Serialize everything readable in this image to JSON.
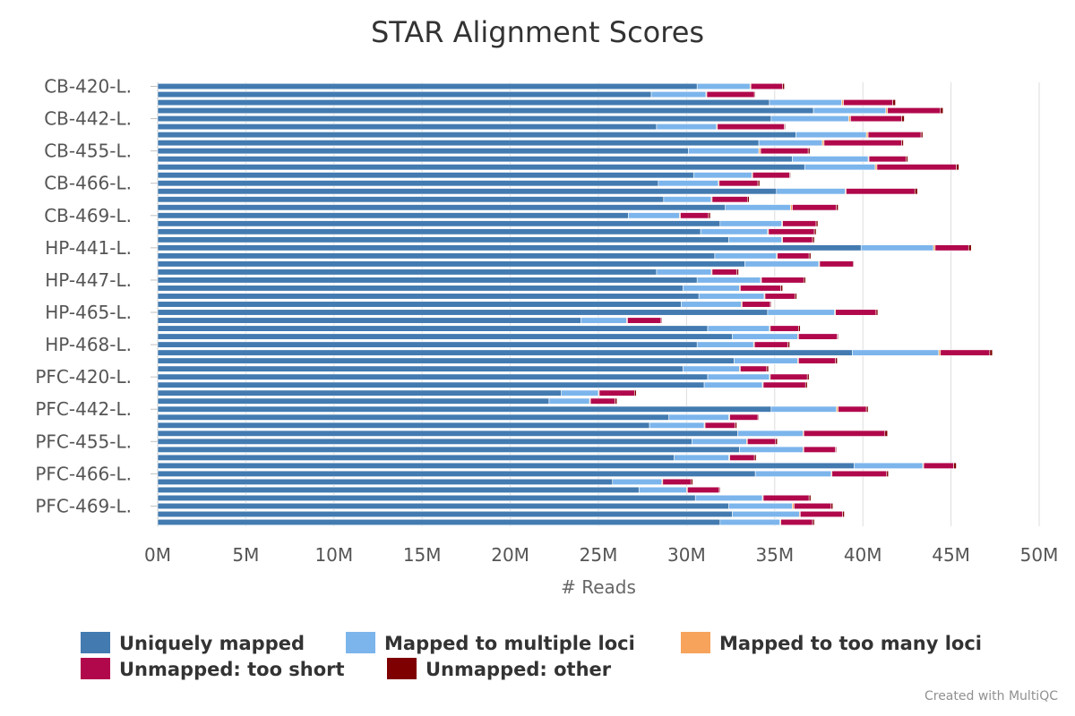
{
  "chart_data": {
    "type": "bar",
    "orientation": "horizontal",
    "stacked": true,
    "title": "STAR Alignment Scores",
    "xlabel": "# Reads",
    "ylabel": "",
    "xlim": [
      0,
      50000000
    ],
    "x_ticks": [
      "0M",
      "5M",
      "10M",
      "15M",
      "20M",
      "25M",
      "30M",
      "35M",
      "40M",
      "45M",
      "50M"
    ],
    "y_tick_labels": [
      "CB-420-L.",
      "CB-442-L.",
      "CB-455-L.",
      "CB-466-L.",
      "CB-469-L.",
      "HP-441-L.",
      "HP-447-L.",
      "HP-465-L.",
      "HP-468-L.",
      "PFC-420-L.",
      "PFC-442-L.",
      "PFC-455-L.",
      "PFC-466-L.",
      "PFC-469-L."
    ],
    "y_tick_positions": [
      0,
      4,
      8,
      12,
      16,
      20,
      24,
      28,
      32,
      36,
      40,
      44,
      48,
      52
    ],
    "grid": "vertical",
    "legend_position": "bottom",
    "colors": [
      "#437bb1",
      "#7cb5ec",
      "#f7a35c",
      "#b1084c",
      "#7f0000"
    ],
    "series": [
      {
        "name": "Uniquely mapped",
        "values": [
          30.6,
          28.0,
          34.7,
          37.2,
          34.8,
          28.3,
          36.2,
          34.1,
          30.1,
          36.0,
          36.7,
          30.4,
          28.4,
          35.1,
          28.7,
          32.2,
          26.7,
          31.9,
          30.8,
          32.4,
          39.9,
          31.6,
          33.3,
          28.3,
          30.6,
          29.8,
          30.7,
          29.7,
          34.6,
          24.0,
          31.2,
          32.6,
          30.6,
          39.4,
          32.7,
          29.8,
          31.2,
          31.0,
          22.9,
          22.2,
          34.8,
          29.0,
          27.9,
          32.9,
          30.3,
          33.0,
          29.3,
          39.5,
          33.9,
          25.8,
          27.3,
          30.5,
          32.4,
          32.6,
          31.9
        ],
        "counts_in": "millions of reads"
      },
      {
        "name": "Mapped to multiple loci",
        "values": [
          3.0,
          3.1,
          4.1,
          4.1,
          4.4,
          3.4,
          4.0,
          3.6,
          4.0,
          4.3,
          4.0,
          3.3,
          3.4,
          3.9,
          2.7,
          3.7,
          2.9,
          3.5,
          3.8,
          3.0,
          4.1,
          3.5,
          4.2,
          3.1,
          3.6,
          3.2,
          3.7,
          3.4,
          3.8,
          2.6,
          3.5,
          3.7,
          3.2,
          4.9,
          3.6,
          3.2,
          3.5,
          3.3,
          2.1,
          2.3,
          3.7,
          3.4,
          3.1,
          3.7,
          3.1,
          3.6,
          3.1,
          3.9,
          4.3,
          2.8,
          2.7,
          3.8,
          3.6,
          3.8,
          3.4
        ],
        "counts_in": "millions of reads"
      },
      {
        "name": "Mapped to too many loci",
        "values": [
          0.05,
          0.05,
          0.1,
          0.1,
          0.1,
          0.05,
          0.1,
          0.1,
          0.1,
          0.05,
          0.1,
          0.05,
          0.05,
          0.05,
          0.05,
          0.1,
          0.05,
          0.05,
          0.05,
          0.05,
          0.1,
          0.05,
          0.05,
          0.05,
          0.05,
          0.05,
          0.05,
          0.05,
          0.05,
          0.05,
          0.05,
          0.05,
          0.05,
          0.1,
          0.05,
          0.05,
          0.05,
          0.05,
          0.05,
          0.05,
          0.1,
          0.05,
          0.05,
          0.05,
          0.05,
          0.05,
          0.05,
          0.05,
          0.05,
          0.05,
          0.05,
          0.05,
          0.1,
          0.05,
          0.05
        ],
        "counts_in": "millions of reads"
      },
      {
        "name": "Unmapped: too short",
        "values": [
          1.8,
          2.7,
          2.8,
          3.0,
          2.9,
          3.8,
          3.0,
          4.4,
          2.7,
          2.1,
          4.5,
          2.1,
          2.2,
          3.9,
          2.0,
          2.5,
          1.6,
          1.9,
          2.6,
          1.7,
          1.9,
          1.8,
          1.9,
          1.4,
          2.4,
          2.3,
          1.7,
          1.6,
          2.3,
          1.9,
          1.6,
          2.2,
          1.9,
          2.8,
          2.1,
          1.5,
          2.1,
          2.4,
          2.0,
          1.4,
          1.6,
          1.6,
          1.7,
          4.6,
          1.6,
          1.8,
          1.4,
          1.7,
          3.1,
          1.6,
          1.8,
          2.6,
          2.1,
          2.4,
          1.8
        ],
        "counts_in": "millions of reads"
      },
      {
        "name": "Unmapped: other",
        "values": [
          0.1,
          0.05,
          0.15,
          0.15,
          0.15,
          0.05,
          0.1,
          0.1,
          0.1,
          0.1,
          0.15,
          0.05,
          0.1,
          0.15,
          0.1,
          0.1,
          0.1,
          0.1,
          0.1,
          0.1,
          0.15,
          0.1,
          0.05,
          0.1,
          0.1,
          0.1,
          0.1,
          0.05,
          0.1,
          0.05,
          0.1,
          0.05,
          0.1,
          0.15,
          0.1,
          0.1,
          0.1,
          0.1,
          0.1,
          0.1,
          0.1,
          0.05,
          0.1,
          0.15,
          0.1,
          0.05,
          0.1,
          0.15,
          0.1,
          0.1,
          0.05,
          0.1,
          0.1,
          0.1,
          0.1
        ],
        "counts_in": "millions of reads"
      }
    ]
  },
  "footer": {
    "credit": "Created with MultiQC"
  }
}
